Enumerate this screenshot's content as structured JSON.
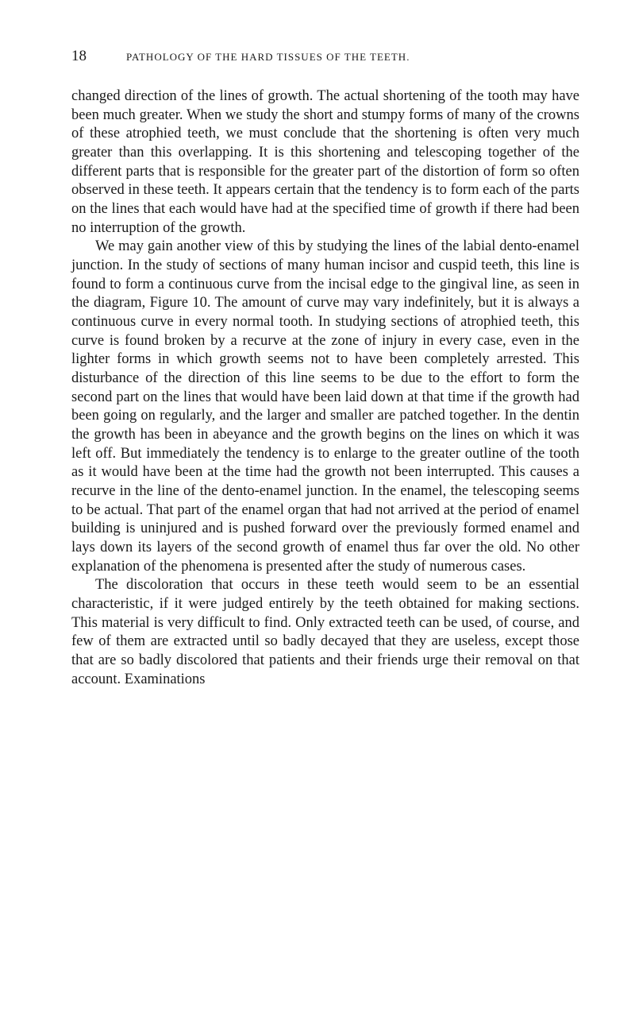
{
  "header": {
    "page_number": "18",
    "running_title": "PATHOLOGY OF THE HARD TISSUES OF THE TEETH."
  },
  "paragraphs": [
    {
      "indent": false,
      "text": "changed direction of the lines of growth. The actual shortening of the tooth may have been much greater. When we study the short and stumpy forms of many of the crowns of these atrophied teeth, we must conclude that the shortening is often very much greater than this overlapping. It is this shortening and telescoping together of the different parts that is responsible for the greater part of the distortion of form so often observed in these teeth. It appears certain that the tendency is to form each of the parts on the lines that each would have had at the specified time of growth if there had been no interruption of the growth."
    },
    {
      "indent": true,
      "text": "We may gain another view of this by studying the lines of the labial dento-enamel junction. In the study of sections of many human incisor and cuspid teeth, this line is found to form a continuous curve from the incisal edge to the gingival line, as seen in the diagram, Figure 10. The amount of curve may vary indefinitely, but it is always a continuous curve in every normal tooth. In studying sections of atrophied teeth, this curve is found broken by a recurve at the zone of injury in every case, even in the lighter forms in which growth seems not to have been completely arrested. This disturbance of the direction of this line seems to be due to the effort to form the second part on the lines that would have been laid down at that time if the growth had been going on regularly, and the larger and smaller are patched together. In the dentin the growth has been in abeyance and the growth begins on the lines on which it was left off. But immediately the tendency is to enlarge to the greater outline of the tooth as it would have been at the time had the growth not been interrupted. This causes a recurve in the line of the dento-enamel junction. In the enamel, the telescoping seems to be actual. That part of the enamel organ that had not arrived at the period of enamel building is uninjured and is pushed forward over the previously formed enamel and lays down its layers of the second growth of enamel thus far over the old. No other explanation of the phenomena is presented after the study of numerous cases."
    },
    {
      "indent": true,
      "text": "The discoloration that occurs in these teeth would seem to be an essential characteristic, if it were judged entirely by the teeth obtained for making sections. This material is very difficult to find. Only extracted teeth can be used, of course, and few of them are extracted until so badly decayed that they are useless, except those that are so badly discolored that patients and their friends urge their removal on that account. Examinations"
    }
  ],
  "styles": {
    "background_color": "#ffffff",
    "text_color": "#1a1a1a",
    "body_font_size": 18.5,
    "page_number_font_size": 19,
    "running_title_font_size": 13,
    "line_height": 1.28,
    "paragraph_indent": 30
  }
}
